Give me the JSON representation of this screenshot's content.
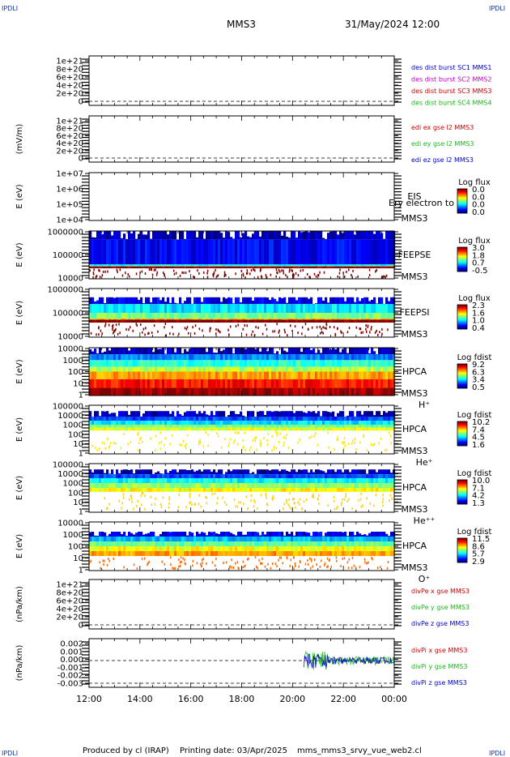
{
  "header": {
    "corner_tl": "IPDLI",
    "corner_tr": "IPDLI",
    "corner_bl": "IPDLI",
    "corner_br": "IPDLI",
    "mission": "MMS3",
    "date": "31/May/2024 12:00"
  },
  "footer": {
    "producer": "Produced by cl (IRAP)",
    "printing": "Printing date: 03/Apr/2025",
    "script": "mms_mms3_srvy_vue_web2.cl"
  },
  "colors": {
    "frame": "#000000",
    "red": "#d00000",
    "green": "#18b818",
    "blue": "#0000cc",
    "magenta": "#c000c0"
  },
  "chart_data": {
    "type": "heatmap",
    "x_range_hours": [
      12,
      24
    ],
    "x_ticks": [
      "12:00",
      "14:00",
      "16:00",
      "18:00",
      "20:00",
      "22:00",
      "00:00"
    ],
    "panels": [
      {
        "kind": "line",
        "ylabel": "",
        "ticks": [
          "1e+21",
          "8e+20",
          "6e+20",
          "4e+20",
          "2e+20",
          "0"
        ],
        "labels": [
          {
            "text": "des dist burst SC1 MMS1",
            "color": "#0000cc"
          },
          {
            "text": "des dist burst SC2 MMS2",
            "color": "#c000c0"
          },
          {
            "text": "des dist burst SC3 MMS3",
            "color": "#d00000"
          },
          {
            "text": "des dist burst SC4 MMS4",
            "color": "#18b818"
          }
        ]
      },
      {
        "kind": "line",
        "ylabel": "(mV/m)",
        "ticks": [
          "1e+21",
          "8e+20",
          "6e+20",
          "4e+20",
          "2e+20",
          "0"
        ],
        "labels": [
          {
            "text": "edi ex gse l2 MMS3",
            "color": "#d00000"
          },
          {
            "text": "edi ey gse l2 MMS3",
            "color": "#18b818"
          },
          {
            "text": "edi ez gse l2 MMS3",
            "color": "#0000cc"
          }
        ]
      },
      {
        "kind": "spec",
        "ylabel": "E (eV)",
        "ticks": [
          "1e+07",
          "1e+06",
          "1e+05",
          "1e+04"
        ],
        "inst": [
          "EIS",
          "MMS3"
        ],
        "overlay": "Ery electron to",
        "cb_title": "Log flux",
        "cb_ticks": [
          "0.0",
          "0.0",
          "0.0",
          "0.0"
        ],
        "cells": []
      },
      {
        "kind": "spec",
        "ylabel": "E (eV)",
        "ticks": [
          "1000000",
          "100000",
          "10000"
        ],
        "inst": [
          "FEEPSE",
          "MMS3"
        ],
        "cb_title": "Log flux",
        "cb_ticks": [
          "3.0",
          "1.8",
          "0.7",
          "-0.5"
        ],
        "cells": [
          {
            "e_top": 1.0,
            "e_bot": 0.82,
            "lvl": 0.05
          },
          {
            "e_top": 0.82,
            "e_bot": 0.3,
            "lvl": 0.12
          },
          {
            "e_top": 0.3,
            "e_bot": 0.26,
            "lvl": 0.4
          },
          {
            "e_top": 0.26,
            "e_bot": 0.22,
            "lvl": 0.98
          }
        ]
      },
      {
        "kind": "spec",
        "ylabel": "E (eV)",
        "ticks": [
          "1000000",
          "100000",
          "10000"
        ],
        "inst": [
          "FEEPSI",
          "MMS3"
        ],
        "cb_title": "Log flux",
        "cb_ticks": [
          "2.3",
          "1.6",
          "1.0",
          "0.4"
        ],
        "cells": [
          {
            "e_top": 0.82,
            "e_bot": 0.68,
            "lvl": 0.1
          },
          {
            "e_top": 0.68,
            "e_bot": 0.5,
            "lvl": 0.35
          },
          {
            "e_top": 0.5,
            "e_bot": 0.38,
            "lvl": 0.5
          },
          {
            "e_top": 0.38,
            "e_bot": 0.36,
            "lvl": 0.7
          },
          {
            "e_top": 0.36,
            "e_bot": 0.3,
            "lvl": 1.0
          }
        ]
      },
      {
        "kind": "spec",
        "ylabel": "E (eV)",
        "ticks": [
          "10000",
          "1000",
          "100",
          "10",
          "1"
        ],
        "inst": [
          "HPCA",
          "MMS3",
          "H⁺"
        ],
        "cb_title": "Log fdist",
        "cb_ticks": [
          "9.2",
          "6.3",
          "3.4",
          "0.5"
        ],
        "cells": [
          {
            "e_top": 1.0,
            "e_bot": 0.86,
            "lvl": 0.05
          },
          {
            "e_top": 0.86,
            "e_bot": 0.74,
            "lvl": 0.25
          },
          {
            "e_top": 0.74,
            "e_bot": 0.6,
            "lvl": 0.42
          },
          {
            "e_top": 0.6,
            "e_bot": 0.5,
            "lvl": 0.55
          },
          {
            "e_top": 0.5,
            "e_bot": 0.34,
            "lvl": 0.72
          },
          {
            "e_top": 0.34,
            "e_bot": 0.16,
            "lvl": 0.86
          },
          {
            "e_top": 0.16,
            "e_bot": 0.0,
            "lvl": 0.97
          }
        ]
      },
      {
        "kind": "spec",
        "ylabel": "E (eV)",
        "ticks": [
          "100000",
          "10000",
          "1000",
          "100",
          "10",
          "1"
        ],
        "inst": [
          "HPCA",
          "MMS3",
          "He⁺"
        ],
        "cb_title": "Log fdist",
        "cb_ticks": [
          "10.2",
          "7.4",
          "4.5",
          "1.6"
        ],
        "cells": [
          {
            "e_top": 0.88,
            "e_bot": 0.76,
            "lvl": 0.05
          },
          {
            "e_top": 0.76,
            "e_bot": 0.68,
            "lvl": 0.2
          },
          {
            "e_top": 0.68,
            "e_bot": 0.6,
            "lvl": 0.35
          },
          {
            "e_top": 0.6,
            "e_bot": 0.54,
            "lvl": 0.5
          },
          {
            "e_top": 0.54,
            "e_bot": 0.48,
            "lvl": 0.6
          }
        ]
      },
      {
        "kind": "spec",
        "ylabel": "E (eV)",
        "ticks": [
          "100000",
          "10000",
          "1000",
          "100",
          "10",
          "1"
        ],
        "inst": [
          "HPCA",
          "MMS3",
          "He⁺⁺"
        ],
        "cb_title": "Log fdist",
        "cb_ticks": [
          "10.0",
          "7.1",
          "4.2",
          "1.3"
        ],
        "cells": [
          {
            "e_top": 0.88,
            "e_bot": 0.78,
            "lvl": 0.05
          },
          {
            "e_top": 0.78,
            "e_bot": 0.7,
            "lvl": 0.2
          },
          {
            "e_top": 0.7,
            "e_bot": 0.6,
            "lvl": 0.38
          },
          {
            "e_top": 0.6,
            "e_bot": 0.5,
            "lvl": 0.52
          },
          {
            "e_top": 0.5,
            "e_bot": 0.42,
            "lvl": 0.62
          }
        ]
      },
      {
        "kind": "spec",
        "ylabel": "E (eV)",
        "ticks": [
          "10000",
          "1000",
          "100",
          "10",
          "1"
        ],
        "inst": [
          "HPCA",
          "MMS3",
          "O⁺"
        ],
        "cb_title": "Log fdist",
        "cb_ticks": [
          "11.5",
          "8.6",
          "5.7",
          "2.9"
        ],
        "cells": [
          {
            "e_top": 0.8,
            "e_bot": 0.7,
            "lvl": 0.1
          },
          {
            "e_top": 0.7,
            "e_bot": 0.6,
            "lvl": 0.3
          },
          {
            "e_top": 0.6,
            "e_bot": 0.5,
            "lvl": 0.48
          },
          {
            "e_top": 0.5,
            "e_bot": 0.4,
            "lvl": 0.62
          },
          {
            "e_top": 0.4,
            "e_bot": 0.3,
            "lvl": 0.72
          }
        ]
      },
      {
        "kind": "line",
        "ylabel": "(nPa/km)",
        "ticks": [
          "1e+21",
          "8e+20",
          "6e+20",
          "4e+20",
          "2e+20",
          "0"
        ],
        "labels": [
          {
            "text": "divPe x gse MMS3",
            "color": "#d00000"
          },
          {
            "text": "divPe y gse MMS3",
            "color": "#18b818"
          },
          {
            "text": "divPe z gse MMS3",
            "color": "#0000cc"
          }
        ]
      },
      {
        "kind": "line",
        "ylabel": "(nPa/km)",
        "ticks": [
          "0.002",
          "0.001",
          "0.000",
          "-0.001",
          "-0.002",
          "-0.003"
        ],
        "labels": [
          {
            "text": "divPi x gse MMS3",
            "color": "#d00000"
          },
          {
            "text": "divPi y gse MMS3",
            "color": "#18b818"
          },
          {
            "text": "divPi z gse MMS3",
            "color": "#0000cc"
          }
        ],
        "signal": {
          "start_hour": 20.45,
          "end_hour": 24.0,
          "amplitude": 0.0012
        }
      }
    ]
  }
}
